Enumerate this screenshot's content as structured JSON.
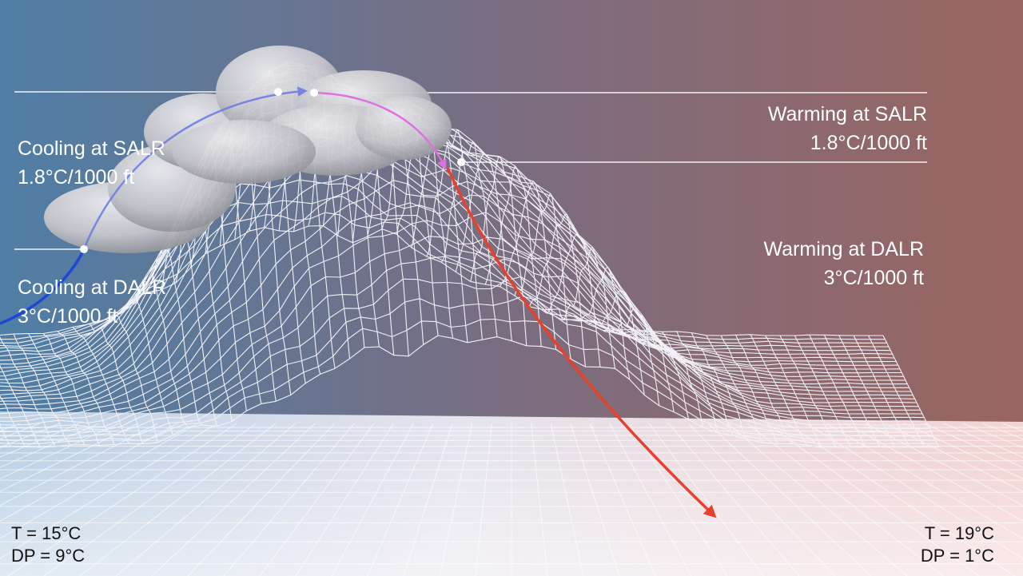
{
  "labels": {
    "cooling_salr": {
      "title": "Cooling at SALR",
      "rate": "1.8°C/1000 ft"
    },
    "cooling_dalr": {
      "title": "Cooling at DALR",
      "rate": "3°C/1000 ft"
    },
    "warming_salr": {
      "title": "Warming at SALR",
      "rate": "1.8°C/1000 ft"
    },
    "warming_dalr": {
      "title": "Warming at DALR",
      "rate": "3°C/1000 ft"
    }
  },
  "windward": {
    "temperature": "T = 15°C",
    "dew_point": "DP = 9°C"
  },
  "leeward": {
    "temperature": "T = 19°C",
    "dew_point": "DP = 1°C"
  },
  "colors": {
    "sky_left": "#4f7ea6",
    "sky_mid": "#7a6d80",
    "sky_right": "#9a6560",
    "mesh": "#f2f2f8",
    "cooling_dalr_arrow": "#1e46d8",
    "cooling_salr_arrow": "#6a78e6",
    "warming_salr_arrow": "#e070e0",
    "warming_dalr_arrow": "#e8402a",
    "cloud": "#c8c8cc"
  },
  "icons": [
    "cloud-icon",
    "mountain-mesh"
  ]
}
